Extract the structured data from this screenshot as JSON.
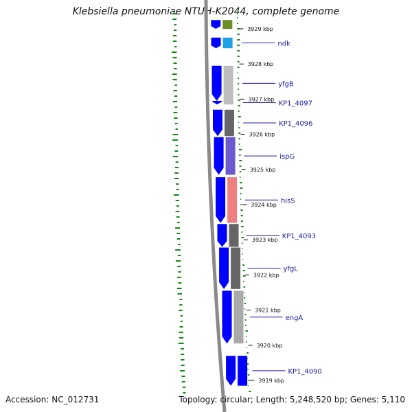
{
  "title": "Klebsiella pneumoniae NTUH-K2044, complete genome",
  "accession": "Accession: NC_012731",
  "topology": "Topology: circular; Length: 5,248,520 bp; Genes: 5,110",
  "ticks": [
    {
      "label": "3929 kbp",
      "kbp": 3929
    },
    {
      "label": "3928 kbp",
      "kbp": 3928
    },
    {
      "label": "3927 kbp",
      "kbp": 3927
    },
    {
      "label": "3926 kbp",
      "kbp": 3926
    },
    {
      "label": "3925 kbp",
      "kbp": 3925
    },
    {
      "label": "3924 kbp",
      "kbp": 3924
    },
    {
      "label": "3923 kbp",
      "kbp": 3923
    },
    {
      "label": "3922 kbp",
      "kbp": 3922
    },
    {
      "label": "3921 kbp",
      "kbp": 3921
    },
    {
      "label": "3920 kbp",
      "kbp": 3920
    },
    {
      "label": "3919 kbp",
      "kbp": 3919
    }
  ],
  "genes": [
    {
      "name": "",
      "start_kbp": 3929.25,
      "end_kbp": 3929.0,
      "color": "#6b8e23",
      "labelled": false
    },
    {
      "name": "ndk",
      "start_kbp": 3928.75,
      "end_kbp": 3928.45,
      "color": "#1ea0e6",
      "labelled": true
    },
    {
      "name": "yfgB",
      "start_kbp": 3927.95,
      "end_kbp": 3926.95,
      "color": "#bdbdbd",
      "labelled": true
    },
    {
      "name": "KP1_4097",
      "start_kbp": 3926.95,
      "end_kbp": 3926.85,
      "color": "#bdbdbd",
      "labelled": true
    },
    {
      "name": "KP1_4096",
      "start_kbp": 3926.7,
      "end_kbp": 3925.95,
      "color": "#666666",
      "labelled": true
    },
    {
      "name": "ispG",
      "start_kbp": 3925.92,
      "end_kbp": 3924.85,
      "color": "#6a5acd",
      "labelled": true
    },
    {
      "name": "hisS",
      "start_kbp": 3924.78,
      "end_kbp": 3923.48,
      "color": "#f08080",
      "labelled": true
    },
    {
      "name": "KP1_4093",
      "start_kbp": 3923.45,
      "end_kbp": 3922.8,
      "color": "#666666",
      "labelled": true
    },
    {
      "name": "yfgL",
      "start_kbp": 3922.78,
      "end_kbp": 3921.6,
      "color": "#666666",
      "labelled": true
    },
    {
      "name": "engA",
      "start_kbp": 3921.55,
      "end_kbp": 3920.05,
      "color": "#aaaaaa",
      "labelled": true
    },
    {
      "name": "KP1_4090",
      "start_kbp": 3919.7,
      "end_kbp": 3918.85,
      "color": "#0000ff",
      "labelled": true
    }
  ],
  "colors": {
    "cds_strand": "#0000ff",
    "backbone": "#8a8a8a",
    "gc_plot": "#118811",
    "gene_label": "#1a1aa8"
  }
}
